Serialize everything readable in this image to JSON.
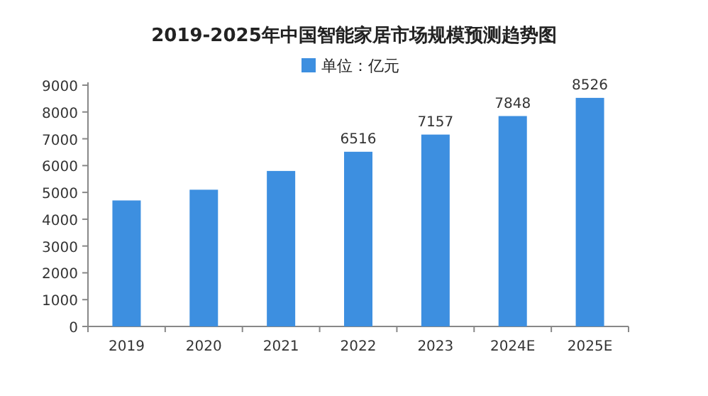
{
  "chart_data": {
    "type": "bar",
    "title": "2019-2025年中国智能家居市场规模预测趋势图",
    "categories": [
      "2019",
      "2020",
      "2021",
      "2022",
      "2023",
      "2024E",
      "2025E"
    ],
    "series": [
      {
        "name": "单位：亿元",
        "color": "#3d8fe0",
        "values": [
          4700,
          5100,
          5800,
          6516,
          7157,
          7848,
          8526
        ],
        "value_labels": [
          null,
          null,
          null,
          "6516",
          "7157",
          "7848",
          "8526"
        ]
      }
    ],
    "ylim": [
      0,
      9000
    ],
    "yticks": [
      0,
      1000,
      2000,
      3000,
      4000,
      5000,
      6000,
      7000,
      8000,
      9000
    ],
    "grid": false,
    "legend": "top"
  }
}
